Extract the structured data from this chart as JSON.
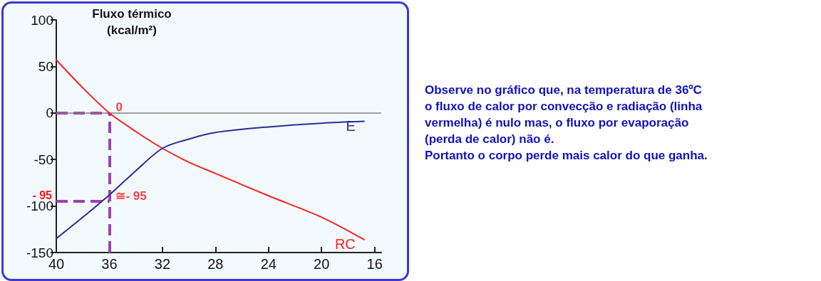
{
  "chart_data": {
    "type": "line",
    "ylabel": "Fluxo térmico (kcal/m²)",
    "xlim": [
      40,
      15.5
    ],
    "xticks": [
      40,
      36,
      32,
      28,
      24,
      20,
      16
    ],
    "ylim": [
      -150,
      100
    ],
    "yticks": [
      100,
      50,
      0,
      -50,
      -100,
      -150
    ],
    "grid": false,
    "legend": false,
    "marker": "none",
    "line_style": "solid",
    "series": [
      {
        "name": "RC",
        "color": "#ff2020",
        "x": [
          40,
          38,
          36,
          34,
          32,
          30,
          28,
          24,
          20,
          16.8
        ],
        "values": [
          57,
          27,
          0,
          -20,
          -38,
          -53,
          -65,
          -89,
          -112,
          -136
        ]
      },
      {
        "name": "E",
        "color": "#2b2ba0",
        "x": [
          40,
          38,
          36,
          34,
          32,
          30,
          28,
          24,
          20,
          16.8
        ],
        "values": [
          -135,
          -112,
          -88,
          -62,
          -38,
          -28,
          -21,
          -15,
          -11,
          -9
        ]
      }
    ],
    "ref_lines": [
      {
        "axis": "y",
        "value": 0,
        "color": "#a040b0",
        "line_style": "dashed"
      },
      {
        "axis": "y",
        "value": 0,
        "color": "#808080",
        "line_style": "solid"
      },
      {
        "axis": "y",
        "value": -95,
        "label": "- 95",
        "color": "#a040b0",
        "line_style": "dashed"
      },
      {
        "axis": "x",
        "value": 36,
        "color": "#a040b0",
        "line_style": "dashed"
      }
    ],
    "annotations": [
      {
        "text": "0",
        "x": 36,
        "y": 0
      },
      {
        "text": "≅- 95",
        "x": 36,
        "y": -95
      },
      "Observe no gráfico que, na temperatura de 36ºC",
      "o fluxo de calor por convecção e radiação (linha",
      "vermelha) é nulo mas, o fluxo por evaporação",
      "(perda de calor) não é.",
      "Portanto o corpo perde mais calor do que ganha."
    ]
  }
}
